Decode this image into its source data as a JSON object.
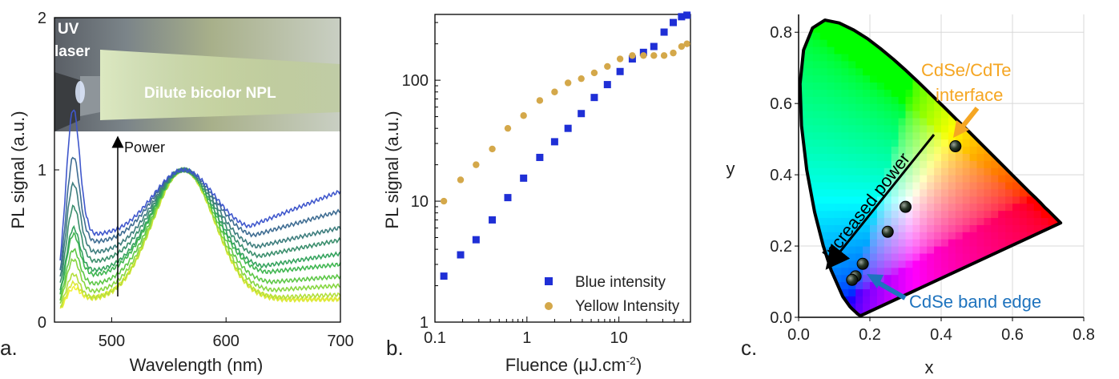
{
  "colors": {
    "blue_series": "#1f2fd6",
    "yellow_series": "#d4a84a",
    "cdse_cdte_label": "#f5a623",
    "band_edge_label": "#1e73be",
    "arrow_yellow": "#f5a623",
    "arrow_blue": "#1e73be"
  },
  "panels": {
    "a": {
      "label": "a."
    },
    "b": {
      "label": "b."
    },
    "c": {
      "label": "c."
    }
  },
  "chart_data": [
    {
      "id": "a",
      "type": "line",
      "xlabel": "Wavelength (nm)",
      "ylabel": "PL signal (a.u.)",
      "xlim": [
        450,
        700
      ],
      "ylim": [
        0,
        2
      ],
      "xticks": [
        500,
        600,
        700
      ],
      "yticks": [
        0,
        1,
        2
      ],
      "inset_photo": {
        "labels": [
          "UV",
          "laser",
          "Dilute bicolor NPL"
        ]
      },
      "annotation": {
        "text": "Power"
      },
      "spectra": [
        {
          "blue_peak": 0.27,
          "trough": 0.15,
          "tail": 0.15,
          "color": "#f2f23a"
        },
        {
          "blue_peak": 0.3,
          "trough": 0.14,
          "tail": 0.15,
          "color": "#dbe83a"
        },
        {
          "blue_peak": 0.36,
          "trough": 0.15,
          "tail": 0.18,
          "color": "#b3df3b"
        },
        {
          "blue_peak": 0.47,
          "trough": 0.19,
          "tail": 0.24,
          "color": "#86d640"
        },
        {
          "blue_peak": 0.55,
          "trough": 0.24,
          "tail": 0.3,
          "color": "#5dc747"
        },
        {
          "blue_peak": 0.67,
          "trough": 0.3,
          "tail": 0.38,
          "color": "#3fb650"
        },
        {
          "blue_peak": 0.72,
          "trough": 0.33,
          "tail": 0.45,
          "color": "#35a35e"
        },
        {
          "blue_peak": 0.88,
          "trough": 0.39,
          "tail": 0.54,
          "color": "#3a8e6c"
        },
        {
          "blue_peak": 1.05,
          "trough": 0.45,
          "tail": 0.62,
          "color": "#3d7d7d"
        },
        {
          "blue_peak": 1.25,
          "trough": 0.52,
          "tail": 0.73,
          "color": "#3e6c92"
        },
        {
          "blue_peak": 1.58,
          "trough": 0.57,
          "tail": 0.86,
          "color": "#3f57cc"
        }
      ]
    },
    {
      "id": "b",
      "type": "scatter",
      "xlabel": "Fluence (μJ.cm",
      "xlabel_sup": "-2",
      "xlabel_end": ")",
      "ylabel": "PL signal (a.u.)",
      "xscale": "log",
      "yscale": "log",
      "xlim": [
        0.1,
        60
      ],
      "ylim": [
        1,
        350
      ],
      "xticks": [
        0.1,
        1,
        10
      ],
      "xtick_labels": [
        "0.1",
        "1",
        "10"
      ],
      "yticks": [
        1,
        10,
        100
      ],
      "ytick_labels": [
        "1",
        "10",
        "100"
      ],
      "legend_position": "bottom-right",
      "series": [
        {
          "name": "Blue intensity",
          "marker": "square",
          "color": "#1f2fd6",
          "x": [
            0.125,
            0.19,
            0.28,
            0.42,
            0.62,
            0.92,
            1.38,
            2.0,
            2.8,
            3.9,
            5.4,
            7.5,
            10.3,
            14.0,
            18.5,
            24.0,
            31.0,
            39.0,
            48.0,
            55.0
          ],
          "y": [
            2.4,
            3.6,
            4.8,
            7.0,
            10.7,
            15.5,
            23.0,
            31.0,
            40.0,
            53.0,
            72.0,
            92.0,
            118.0,
            150.0,
            170.0,
            190.0,
            250.0,
            300.0,
            335.0,
            345.0
          ]
        },
        {
          "name": "Yellow Intensity",
          "marker": "circle",
          "color": "#d4a84a",
          "x": [
            0.125,
            0.19,
            0.28,
            0.42,
            0.62,
            0.92,
            1.38,
            2.0,
            2.8,
            3.9,
            5.4,
            7.5,
            10.3,
            14.0,
            18.5,
            24.0,
            31.0,
            39.0,
            48.0,
            55.0
          ],
          "y": [
            10.0,
            15.0,
            20.0,
            27.0,
            40.0,
            51.0,
            68.0,
            80.0,
            95.0,
            103.0,
            115.0,
            130.0,
            150.0,
            160.0,
            160.0,
            160.0,
            160.0,
            168.0,
            190.0,
            200.0
          ]
        }
      ]
    },
    {
      "id": "c",
      "type": "scatter",
      "xlabel": "x",
      "ylabel": "y",
      "xlim": [
        0,
        0.8
      ],
      "ylim": [
        0,
        0.85
      ],
      "xticks": [
        0.0,
        0.2,
        0.4,
        0.6,
        0.8
      ],
      "xtick_labels": [
        "0.0",
        "0.2",
        "0.4",
        "0.6",
        "0.8"
      ],
      "yticks": [
        0.0,
        0.2,
        0.4,
        0.6,
        0.8
      ],
      "ytick_labels": [
        "0.0",
        "0.2",
        "0.4",
        "0.6",
        "0.8"
      ],
      "points": [
        {
          "x": 0.44,
          "y": 0.48
        },
        {
          "x": 0.3,
          "y": 0.31
        },
        {
          "x": 0.25,
          "y": 0.24
        },
        {
          "x": 0.18,
          "y": 0.15
        },
        {
          "x": 0.16,
          "y": 0.115
        },
        {
          "x": 0.15,
          "y": 0.105
        }
      ],
      "annotations": {
        "interface_line1": "CdSe/CdTe",
        "interface_line2": "interface",
        "arrow_text": "Increased power",
        "band_edge": "CdSe band edge"
      }
    }
  ]
}
